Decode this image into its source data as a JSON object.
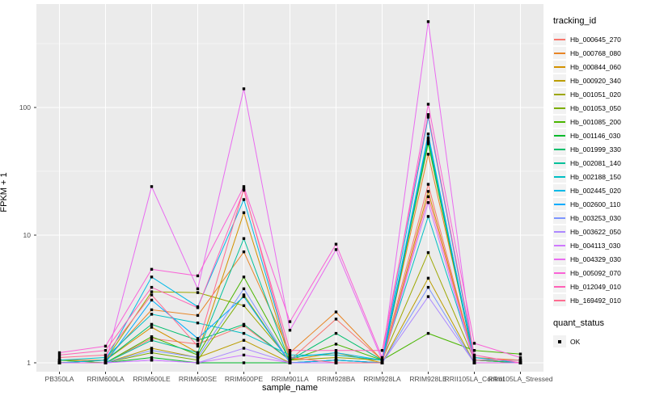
{
  "chart_data": {
    "type": "line",
    "title": "",
    "xlabel": "sample_name",
    "ylabel": "FPKM + 1",
    "y_scale": "log10",
    "y_ticks": [
      1,
      10,
      100
    ],
    "ylim_log": [
      0.93,
      650
    ],
    "grid": "on",
    "legend_position": "right",
    "legend_title": "tracking_id",
    "quant_legend": {
      "title": "quant_status",
      "items": [
        "OK"
      ]
    },
    "point_marker": "black-square",
    "categories": [
      "PB350LA",
      "RRIM600LA",
      "RRIM600LE",
      "RRIM600SE",
      "RRIM600PE",
      "RRIM901LA",
      "RRIM928BA",
      "RRIM928LA",
      "RRIM928LE",
      "RRII105LA_Control",
      "RRII105LA_Stressed"
    ],
    "series": [
      {
        "name": "Hb_000645_270",
        "color": "#F8766D",
        "values": [
          1.0,
          1.0,
          1.55,
          1.4,
          1.95,
          1.05,
          2.2,
          1.05,
          25,
          1.05,
          1.0
        ]
      },
      {
        "name": "Hb_000768_080",
        "color": "#E88526",
        "values": [
          1.05,
          1.05,
          2.6,
          2.35,
          7.4,
          1.2,
          2.5,
          1.05,
          43,
          1.1,
          1.05
        ]
      },
      {
        "name": "Hb_000844_060",
        "color": "#D39200",
        "values": [
          1.0,
          1.05,
          1.9,
          1.2,
          15.0,
          1.05,
          1.2,
          1.0,
          22,
          1.05,
          1.0
        ]
      },
      {
        "name": "Hb_000920_340",
        "color": "#BB9D00",
        "values": [
          1.0,
          1.0,
          1.3,
          1.1,
          1.5,
          1.0,
          1.05,
          1.0,
          4.6,
          1.0,
          1.0
        ]
      },
      {
        "name": "Hb_001051_020",
        "color": "#9DA700",
        "values": [
          1.0,
          1.05,
          3.6,
          3.55,
          2.8,
          1.05,
          1.1,
          1.05,
          7.3,
          1.05,
          1.0
        ]
      },
      {
        "name": "Hb_001053_050",
        "color": "#7CAE00",
        "values": [
          1.0,
          1.0,
          1.2,
          1.05,
          3.4,
          1.0,
          1.05,
          1.0,
          52,
          1.0,
          1.0
        ]
      },
      {
        "name": "Hb_001085_200",
        "color": "#49B500",
        "values": [
          1.05,
          1.0,
          1.6,
          1.15,
          4.7,
          1.05,
          1.4,
          1.05,
          1.7,
          1.25,
          1.17
        ]
      },
      {
        "name": "Hb_001146_030",
        "color": "#00B92A",
        "values": [
          1.0,
          1.0,
          1.1,
          1.0,
          1.0,
          1.0,
          1.0,
          1.0,
          54,
          1.0,
          1.0
        ]
      },
      {
        "name": "Hb_001999_330",
        "color": "#00BE6C",
        "values": [
          1.0,
          1.05,
          2.0,
          1.5,
          2.0,
          1.05,
          1.7,
          1.05,
          58,
          1.05,
          1.0
        ]
      },
      {
        "name": "Hb_002081_140",
        "color": "#00C19A",
        "values": [
          1.0,
          1.0,
          1.5,
          1.2,
          9.4,
          1.0,
          1.05,
          1.0,
          56,
          1.0,
          1.0
        ]
      },
      {
        "name": "Hb_002188_150",
        "color": "#00BFC4",
        "values": [
          1.05,
          1.1,
          2.4,
          2.05,
          1.7,
          1.15,
          1.15,
          1.05,
          14,
          1.05,
          1.05
        ]
      },
      {
        "name": "Hb_002445_020",
        "color": "#00B9E7",
        "values": [
          1.0,
          1.05,
          4.7,
          2.75,
          19.0,
          1.1,
          1.2,
          1.05,
          84,
          1.1,
          1.0
        ]
      },
      {
        "name": "Hb_002600_110",
        "color": "#00ABFD",
        "values": [
          1.0,
          1.0,
          3.1,
          1.55,
          3.3,
          1.0,
          1.05,
          1.0,
          62,
          1.0,
          1.0
        ]
      },
      {
        "name": "Hb_003253_030",
        "color": "#7E96FF",
        "values": [
          1.0,
          1.0,
          1.25,
          1.1,
          3.8,
          1.0,
          1.0,
          1.0,
          3.9,
          1.0,
          1.0
        ]
      },
      {
        "name": "Hb_003622_050",
        "color": "#AC88FF",
        "values": [
          1.0,
          1.0,
          1.05,
          1.0,
          1.3,
          1.0,
          1.0,
          1.0,
          3.3,
          1.0,
          1.0
        ]
      },
      {
        "name": "Hb_004113_030",
        "color": "#CF78FF",
        "values": [
          1.0,
          1.0,
          1.05,
          1.0,
          1.15,
          1.0,
          1.0,
          1.0,
          18,
          1.0,
          1.0
        ]
      },
      {
        "name": "Hb_004329_030",
        "color": "#E96BF0",
        "values": [
          1.0,
          1.0,
          24.0,
          3.8,
          140,
          1.8,
          7.7,
          1.05,
          470,
          1.0,
          1.0
        ]
      },
      {
        "name": "Hb_005092_070",
        "color": "#FA62D7",
        "values": [
          1.2,
          1.35,
          5.4,
          4.8,
          24.0,
          2.1,
          8.5,
          1.1,
          106,
          1.42,
          1.1
        ]
      },
      {
        "name": "Hb_012049_010",
        "color": "#FF61B7",
        "values": [
          1.15,
          1.25,
          3.9,
          2.7,
          22.5,
          1.25,
          1.25,
          1.25,
          88,
          1.15,
          1.0
        ]
      },
      {
        "name": "Hb_169492_010",
        "color": "#FF6C91",
        "values": [
          1.1,
          1.15,
          3.4,
          1.35,
          23.0,
          1.1,
          1.0,
          1.0,
          20,
          1.05,
          1.05
        ]
      }
    ],
    "colors": {
      "panel_bg": "#EBEBEB",
      "grid": "#FFFFFF",
      "tick_text": "#4d4d4d",
      "point": "#000000"
    }
  }
}
